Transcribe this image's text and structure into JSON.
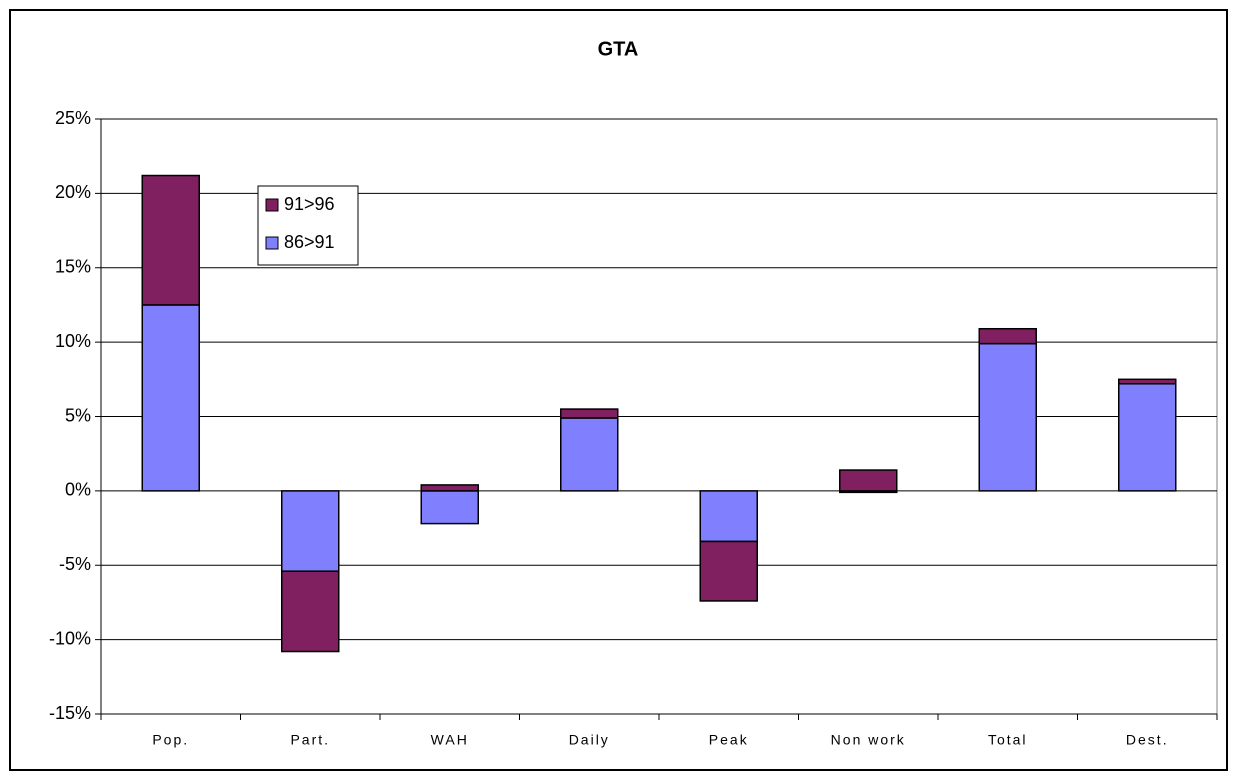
{
  "chart_data": {
    "type": "stacked-bar",
    "title": "GTA",
    "categories": [
      "Pop.",
      "Part.",
      "WAH",
      "Daily",
      "Peak",
      "Non work",
      "Total",
      "Dest."
    ],
    "series": [
      {
        "name": "86>91",
        "color": "#8080ff",
        "values": [
          12.5,
          -5.4,
          -2.2,
          4.9,
          -3.4,
          -0.1,
          9.9,
          7.2
        ]
      },
      {
        "name": "91>96",
        "color": "#802060",
        "values": [
          8.7,
          -5.4,
          0.4,
          0.6,
          -4.0,
          1.4,
          1.0,
          0.3
        ]
      }
    ],
    "ylim": [
      -15,
      25
    ],
    "yticks": [
      {
        "value": -15,
        "label": "-15%"
      },
      {
        "value": -10,
        "label": "-10%"
      },
      {
        "value": -5,
        "label": "-5%"
      },
      {
        "value": 0,
        "label": "0%"
      },
      {
        "value": 5,
        "label": "5%"
      },
      {
        "value": 10,
        "label": "10%"
      },
      {
        "value": 15,
        "label": "15%"
      },
      {
        "value": 20,
        "label": "20%"
      },
      {
        "value": 25,
        "label": "25%"
      }
    ],
    "grid": true
  }
}
